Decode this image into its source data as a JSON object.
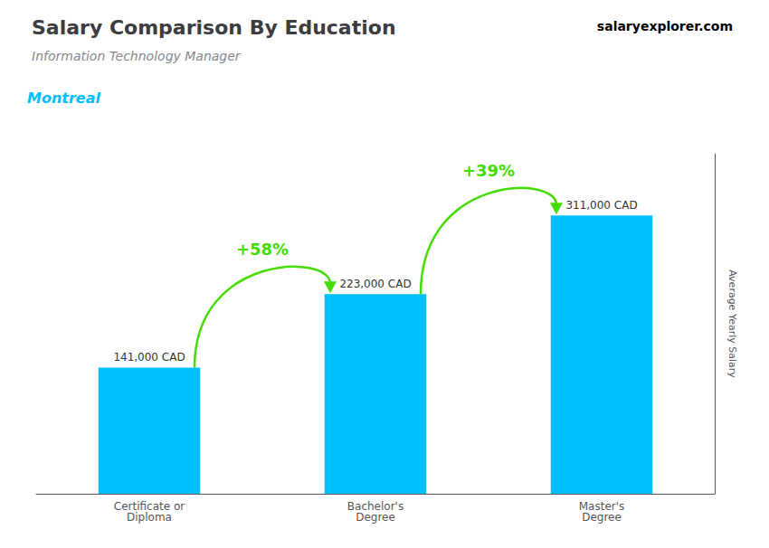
{
  "chart_data": {
    "type": "bar",
    "title": "Salary Comparison By Education",
    "subtitle": "Information Technology Manager",
    "location": "Montreal",
    "website": [
      {
        "text": "salary",
        "color": "#00BFFF"
      },
      {
        "text": "explorer.com"
      }
    ],
    "ylabel": "Average Yearly Salary",
    "categories": [
      "Certificate or\nDiploma",
      "Bachelor's\nDegree",
      "Master's\nDegree"
    ],
    "values": [
      141000,
      223000,
      311000
    ],
    "value_labels": [
      "141,000 CAD",
      "223,000 CAD",
      "311,000 CAD"
    ],
    "data_labels": true,
    "color": "#00BFFF",
    "ylim": [
      0,
      380000
    ],
    "tick_labels": "x",
    "grid": false,
    "annotations": [
      {
        "text": "+58%",
        "from": "Certificate or\nDiploma",
        "to": "Bachelor's\nDegree",
        "color": "#44DD00"
      },
      {
        "text": "+39%",
        "from": "Bachelor's\nDegree",
        "to": "Master's\nDegree",
        "color": "#44DD00"
      }
    ]
  }
}
